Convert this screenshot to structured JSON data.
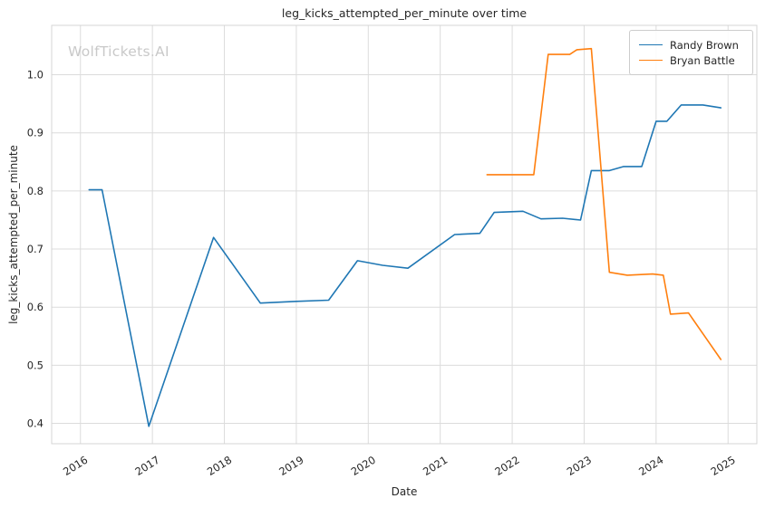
{
  "watermark": "WolfTickets.AI",
  "chart_data": {
    "type": "line",
    "title": "leg_kicks_attempted_per_minute over time",
    "xlabel": "Date",
    "ylabel": "leg_kicks_attempted_per_minute",
    "xlim": [
      2015.6,
      2025.4
    ],
    "ylim": [
      0.365,
      1.085
    ],
    "x_ticks": [
      2016,
      2017,
      2018,
      2019,
      2020,
      2021,
      2022,
      2023,
      2024,
      2025
    ],
    "y_ticks": [
      0.4,
      0.5,
      0.6,
      0.7,
      0.8,
      0.9,
      1.0
    ],
    "grid": true,
    "legend_position": "upper right",
    "series": [
      {
        "name": "Randy Brown",
        "color": "#1f77b4",
        "x": [
          2016.12,
          2016.3,
          2016.95,
          2017.85,
          2018.5,
          2019.0,
          2019.45,
          2019.85,
          2020.2,
          2020.55,
          2021.2,
          2021.55,
          2021.75,
          2022.15,
          2022.4,
          2022.7,
          2022.95,
          2023.1,
          2023.35,
          2023.55,
          2023.8,
          2024.0,
          2024.15,
          2024.35,
          2024.65,
          2024.9
        ],
        "y": [
          0.802,
          0.802,
          0.395,
          0.72,
          0.607,
          0.61,
          0.612,
          0.68,
          0.672,
          0.667,
          0.725,
          0.727,
          0.763,
          0.765,
          0.752,
          0.753,
          0.75,
          0.835,
          0.835,
          0.842,
          0.842,
          0.92,
          0.92,
          0.948,
          0.948,
          0.943
        ]
      },
      {
        "name": "Bryan Battle",
        "color": "#ff7f0e",
        "x": [
          2021.65,
          2022.3,
          2022.5,
          2022.8,
          2022.9,
          2023.1,
          2023.35,
          2023.6,
          2023.95,
          2024.1,
          2024.2,
          2024.45,
          2024.9
        ],
        "y": [
          0.828,
          0.828,
          1.035,
          1.035,
          1.043,
          1.045,
          0.66,
          0.655,
          0.657,
          0.655,
          0.588,
          0.59,
          0.51
        ]
      }
    ]
  }
}
